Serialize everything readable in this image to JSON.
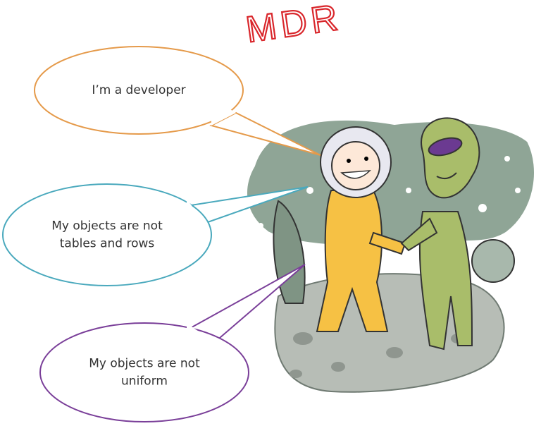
{
  "annotation": "MDR",
  "callouts": [
    {
      "lines": [
        "I’m a developer"
      ],
      "color": "#e59a4a"
    },
    {
      "lines": [
        "My objects are not",
        "tables and rows"
      ],
      "color": "#4aa9bd"
    },
    {
      "lines": [
        "My objects are not",
        "uniform"
      ],
      "color": "#7a3f99"
    }
  ]
}
